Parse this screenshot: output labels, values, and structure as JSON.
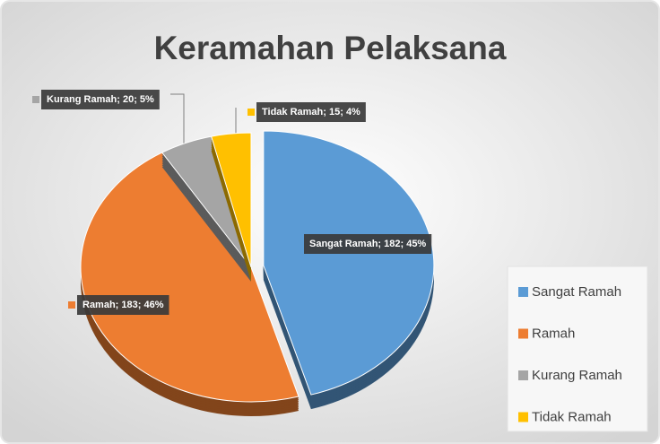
{
  "chart_data": {
    "type": "pie",
    "title": "Keramahan Pelaksana",
    "categories": [
      "Sangat Ramah",
      "Ramah",
      "Kurang Ramah",
      "Tidak Ramah"
    ],
    "values": [
      182,
      183,
      20,
      15
    ],
    "value_labels": [
      "Sangat Ramah; 182; 45%",
      "Ramah; 183; 46%",
      "Kurang Ramah; 20; 5%",
      "Tidak Ramah; 15; 4%"
    ],
    "colors": [
      "#5B9BD5",
      "#ED7D31",
      "#A5A5A5",
      "#FFC000"
    ],
    "legend": "right"
  }
}
